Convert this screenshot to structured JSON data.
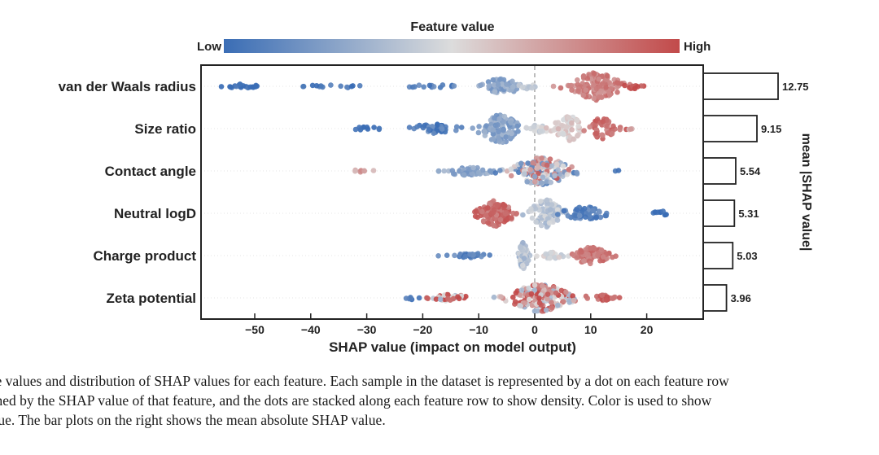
{
  "chart_data": {
    "type": "scatter",
    "subtype": "shap-beeswarm-with-bar",
    "colorbar": {
      "title": "Feature value",
      "low_label": "Low",
      "high_label": "High",
      "colors": [
        "#3a6db5",
        "#dcdcdc",
        "#c24a4a"
      ]
    },
    "xlabel": "SHAP value (impact on model output)",
    "xlim": [
      -56,
      26
    ],
    "xticks": [
      -50,
      -40,
      -30,
      -20,
      -10,
      0,
      10,
      20
    ],
    "xtick_labels": [
      "−50",
      "−40",
      "−30",
      "−20",
      "−10",
      "0",
      "10",
      "20"
    ],
    "zero_line": true,
    "features": [
      {
        "name": "van der Waals radius",
        "mean_abs_shap": 12.75,
        "mean_abs_label": "12.75",
        "clusters": [
          {
            "center": -52,
            "spread": 3.5,
            "n": 22,
            "height": 0.15,
            "color": 0.0
          },
          {
            "center": -35,
            "spread": 7,
            "n": 14,
            "height": 0.1,
            "color": 0.02
          },
          {
            "center": -18,
            "spread": 4,
            "n": 14,
            "height": 0.15,
            "color": 0.08
          },
          {
            "center": -6,
            "spread": 3.5,
            "n": 60,
            "height": 0.55,
            "color": 0.25
          },
          {
            "center": -1.5,
            "spread": 1.5,
            "n": 10,
            "height": 0.2,
            "color": 0.42
          },
          {
            "center": 11,
            "spread": 4,
            "n": 150,
            "height": 1.0,
            "color": 0.82
          },
          {
            "center": 18,
            "spread": 2,
            "n": 12,
            "height": 0.2,
            "color": 0.95
          }
        ]
      },
      {
        "name": "Size ratio",
        "mean_abs_shap": 9.15,
        "mean_abs_label": "9.15",
        "clusters": [
          {
            "center": -30,
            "spread": 2.5,
            "n": 10,
            "height": 0.12,
            "color": 0.0
          },
          {
            "center": -18,
            "spread": 4,
            "n": 40,
            "height": 0.35,
            "color": 0.08
          },
          {
            "center": -6,
            "spread": 3.5,
            "n": 110,
            "height": 1.0,
            "color": 0.25
          },
          {
            "center": 1,
            "spread": 2,
            "n": 20,
            "height": 0.3,
            "color": 0.45
          },
          {
            "center": 6,
            "spread": 2.5,
            "n": 60,
            "height": 0.9,
            "color": 0.55
          },
          {
            "center": 12,
            "spread": 2.5,
            "n": 45,
            "height": 0.75,
            "color": 0.88
          },
          {
            "center": 17,
            "spread": 1,
            "n": 3,
            "height": 0.1,
            "color": 0.7
          }
        ]
      },
      {
        "name": "Contact angle",
        "mean_abs_shap": 5.54,
        "mean_abs_label": "5.54",
        "clusters": [
          {
            "center": -31,
            "spread": 2,
            "n": 8,
            "height": 0.1,
            "color": 0.7
          },
          {
            "center": -12,
            "spread": 4.5,
            "n": 50,
            "height": 0.3,
            "color": 0.25
          },
          {
            "center": 1,
            "spread": 5,
            "n": 160,
            "height": 1.0,
            "color": 0.5,
            "mixed": true
          },
          {
            "center": 15,
            "spread": 0.6,
            "n": 2,
            "height": 0.08,
            "color": 0.0
          }
        ]
      },
      {
        "name": "Neutral logD",
        "mean_abs_shap": 5.31,
        "mean_abs_label": "5.31",
        "clusters": [
          {
            "center": -7,
            "spread": 3,
            "n": 120,
            "height": 0.95,
            "color": 0.88
          },
          {
            "center": 2,
            "spread": 2.5,
            "n": 80,
            "height": 1.0,
            "color": 0.4
          },
          {
            "center": 9,
            "spread": 4,
            "n": 55,
            "height": 0.45,
            "color": 0.1
          },
          {
            "center": 23,
            "spread": 2,
            "n": 10,
            "height": 0.15,
            "color": 0.0
          }
        ]
      },
      {
        "name": "Charge product",
        "mean_abs_shap": 5.03,
        "mean_abs_label": "5.03",
        "clusters": [
          {
            "center": -11,
            "spread": 3,
            "n": 30,
            "height": 0.2,
            "color": 0.1
          },
          {
            "center": -2,
            "spread": 0.8,
            "n": 60,
            "height": 1.0,
            "color": 0.38
          },
          {
            "center": 3,
            "spread": 2,
            "n": 25,
            "height": 0.25,
            "color": 0.48
          },
          {
            "center": 10,
            "spread": 3,
            "n": 80,
            "height": 0.6,
            "color": 0.85
          }
        ]
      },
      {
        "name": "Zeta potential",
        "mean_abs_shap": 3.96,
        "mean_abs_label": "3.96",
        "clusters": [
          {
            "center": -22,
            "spread": 1.5,
            "n": 6,
            "height": 0.12,
            "color": 0.05
          },
          {
            "center": -15,
            "spread": 3,
            "n": 35,
            "height": 0.25,
            "color": 0.72,
            "mixed": true
          },
          {
            "center": 1,
            "spread": 5,
            "n": 190,
            "height": 1.0,
            "color": 0.7,
            "mixed": true
          },
          {
            "center": 12,
            "spread": 2,
            "n": 25,
            "height": 0.2,
            "color": 0.9
          }
        ]
      }
    ],
    "bar_panel": {
      "label": "mean |SHAP value|",
      "xlim": [
        0,
        14
      ]
    }
  },
  "caption": {
    "lines": [
      "lute values and distribution of SHAP values for each feature. Each sample in the dataset is represented by a dot on each feature row",
      "mined by the SHAP value of that feature, and the dots are stacked along each feature row to show density. Color is used to show",
      "value. The bar plots on the right shows the mean absolute SHAP value."
    ]
  }
}
